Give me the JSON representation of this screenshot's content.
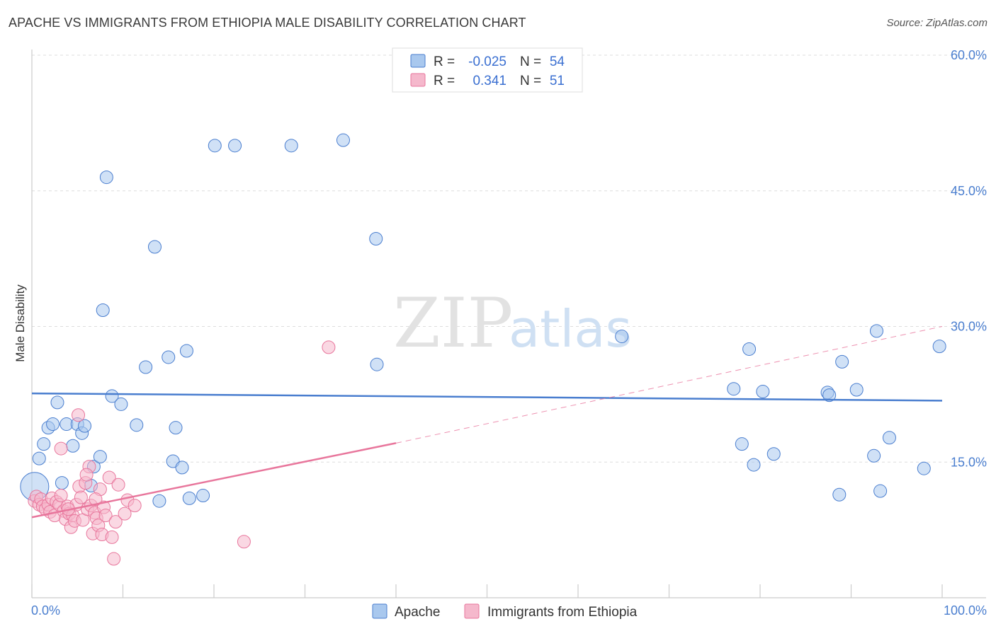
{
  "header": {
    "title": "APACHE VS IMMIGRANTS FROM ETHIOPIA MALE DISABILITY CORRELATION CHART",
    "source": "Source: ZipAtlas.com"
  },
  "colors": {
    "apache": "#4a7ecf",
    "apache_fill": "#a9c8ee",
    "ethiopia": "#e8769c",
    "ethiopia_fill": "#f5b8cc",
    "grid": "#dddddd",
    "axis_label": "#4a7ecf"
  },
  "chart_data": {
    "type": "scatter",
    "title": "APACHE VS IMMIGRANTS FROM ETHIOPIA MALE DISABILITY CORRELATION CHART",
    "ylabel": "Male Disability",
    "xlabel": "",
    "xlim": [
      0,
      100
    ],
    "ylim": [
      0,
      60
    ],
    "y_ticks": [
      {
        "value": 15,
        "label": "15.0%"
      },
      {
        "value": 30,
        "label": "30.0%"
      },
      {
        "value": 45,
        "label": "45.0%"
      },
      {
        "value": 60,
        "label": "60.0%"
      }
    ],
    "x_tick_labels": {
      "min": "0.0%",
      "max": "100.0%"
    },
    "watermark": {
      "zip": "ZIP",
      "atlas": "atlas"
    },
    "legend": {
      "rows": [
        {
          "r_label": "R =",
          "r_value": "-0.025",
          "n_label": "N =",
          "n_value": "54"
        },
        {
          "r_label": "R =",
          "r_value": "0.341",
          "n_label": "N =",
          "n_value": "51"
        }
      ]
    },
    "series": [
      {
        "name": "Apache",
        "trend": {
          "x0": 0,
          "y0": 22.6,
          "x1": 100,
          "y1": 21.8
        },
        "points": [
          [
            0.3,
            12.3
          ],
          [
            0.8,
            15.4
          ],
          [
            1.3,
            17.0
          ],
          [
            1.8,
            18.8
          ],
          [
            2.3,
            19.2
          ],
          [
            2.8,
            21.6
          ],
          [
            3.3,
            12.7
          ],
          [
            3.8,
            19.2
          ],
          [
            4.5,
            16.8
          ],
          [
            5.0,
            19.2
          ],
          [
            5.5,
            18.2
          ],
          [
            5.8,
            19.0
          ],
          [
            6.5,
            12.4
          ],
          [
            6.8,
            14.5
          ],
          [
            7.5,
            15.6
          ],
          [
            7.8,
            31.8
          ],
          [
            8.2,
            46.5
          ],
          [
            8.8,
            22.3
          ],
          [
            9.8,
            21.4
          ],
          [
            11.5,
            19.1
          ],
          [
            12.5,
            25.5
          ],
          [
            13.5,
            38.8
          ],
          [
            14.0,
            10.7
          ],
          [
            15.0,
            26.6
          ],
          [
            15.5,
            15.1
          ],
          [
            15.8,
            18.8
          ],
          [
            16.5,
            14.4
          ],
          [
            17.0,
            27.3
          ],
          [
            17.3,
            11.0
          ],
          [
            18.8,
            11.3
          ],
          [
            20.1,
            50.0
          ],
          [
            22.3,
            50.0
          ],
          [
            28.5,
            50.0
          ],
          [
            34.2,
            50.6
          ],
          [
            37.8,
            39.7
          ],
          [
            37.9,
            25.8
          ],
          [
            64.8,
            28.9
          ],
          [
            77.1,
            23.1
          ],
          [
            78.0,
            17.0
          ],
          [
            78.8,
            27.5
          ],
          [
            79.3,
            14.7
          ],
          [
            80.3,
            22.8
          ],
          [
            81.5,
            15.9
          ],
          [
            87.4,
            22.7
          ],
          [
            87.6,
            22.4
          ],
          [
            88.7,
            11.4
          ],
          [
            89.0,
            26.1
          ],
          [
            90.6,
            23.0
          ],
          [
            92.5,
            15.7
          ],
          [
            92.8,
            29.5
          ],
          [
            93.2,
            11.8
          ],
          [
            94.2,
            17.7
          ],
          [
            98.0,
            14.3
          ],
          [
            99.7,
            27.8
          ]
        ]
      },
      {
        "name": "Immigrants from Ethiopia",
        "trend": {
          "x0": 0,
          "y0": 8.9,
          "x1": 40.0,
          "y1": 17.1,
          "x_dash_end": 100,
          "y_dash_end": 30.0
        },
        "points": [
          [
            0.3,
            10.7
          ],
          [
            0.5,
            11.2
          ],
          [
            0.8,
            10.3
          ],
          [
            1.0,
            10.9
          ],
          [
            1.2,
            10.1
          ],
          [
            1.5,
            9.8
          ],
          [
            1.8,
            10.3
          ],
          [
            2.0,
            9.5
          ],
          [
            2.2,
            11.0
          ],
          [
            2.5,
            9.1
          ],
          [
            2.7,
            10.6
          ],
          [
            3.0,
            10.3
          ],
          [
            3.2,
            11.3
          ],
          [
            3.5,
            9.6
          ],
          [
            3.7,
            8.7
          ],
          [
            3.9,
            10.1
          ],
          [
            4.1,
            9.3
          ],
          [
            4.3,
            7.8
          ],
          [
            4.5,
            9.1
          ],
          [
            4.7,
            8.5
          ],
          [
            4.9,
            10.3
          ],
          [
            5.2,
            12.3
          ],
          [
            5.4,
            11.1
          ],
          [
            5.6,
            8.6
          ],
          [
            5.9,
            12.7
          ],
          [
            6.1,
            9.8
          ],
          [
            6.3,
            14.5
          ],
          [
            6.5,
            10.2
          ],
          [
            6.7,
            7.1
          ],
          [
            6.9,
            9.4
          ],
          [
            7.1,
            8.8
          ],
          [
            7.3,
            8.0
          ],
          [
            7.5,
            12.0
          ],
          [
            7.7,
            7.0
          ],
          [
            7.9,
            10.0
          ],
          [
            8.1,
            9.1
          ],
          [
            8.5,
            13.3
          ],
          [
            8.8,
            6.7
          ],
          [
            9.0,
            4.3
          ],
          [
            9.2,
            8.4
          ],
          [
            10.2,
            9.3
          ],
          [
            3.2,
            16.5
          ],
          [
            5.1,
            20.2
          ],
          [
            9.5,
            12.5
          ],
          [
            10.5,
            10.8
          ],
          [
            11.3,
            10.2
          ],
          [
            6.0,
            13.6
          ],
          [
            7.0,
            10.9
          ],
          [
            4.0,
            9.8
          ],
          [
            32.6,
            27.7
          ],
          [
            23.3,
            6.2
          ]
        ]
      }
    ],
    "bottom_legend": [
      "Apache",
      "Immigrants from Ethiopia"
    ]
  }
}
